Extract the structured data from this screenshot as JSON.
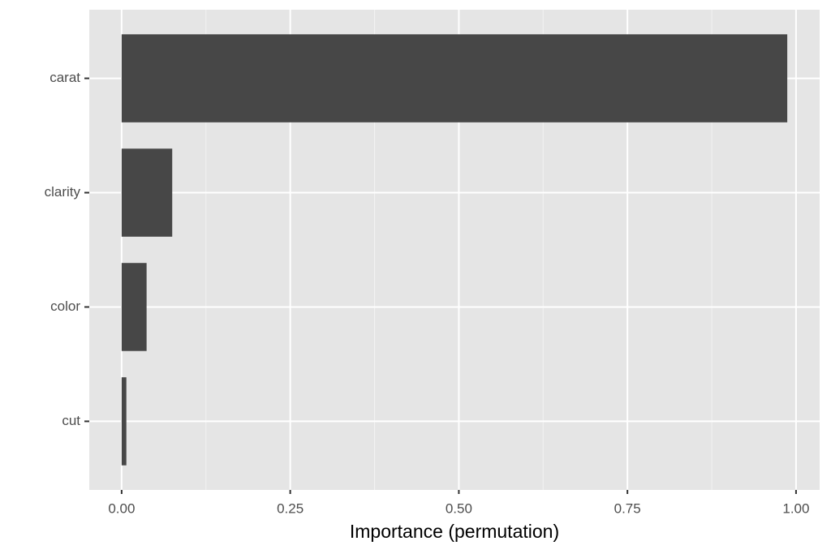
{
  "chart_data": {
    "type": "bar",
    "orientation": "horizontal",
    "x_label": "Importance (permutation)",
    "categories": [
      "carat",
      "clarity",
      "color",
      "cut"
    ],
    "values": [
      0.987,
      0.075,
      0.037,
      0.007
    ],
    "color": "#474747",
    "xlim": [
      -0.048,
      1.035
    ],
    "xticks": [
      {
        "value": 0,
        "label": "0.00"
      },
      {
        "value": 0.25,
        "label": "0.25"
      },
      {
        "value": 0.5,
        "label": "0.50"
      },
      {
        "value": 0.75,
        "label": "0.75"
      },
      {
        "value": 1,
        "label": "1.00"
      }
    ],
    "grid": true
  }
}
